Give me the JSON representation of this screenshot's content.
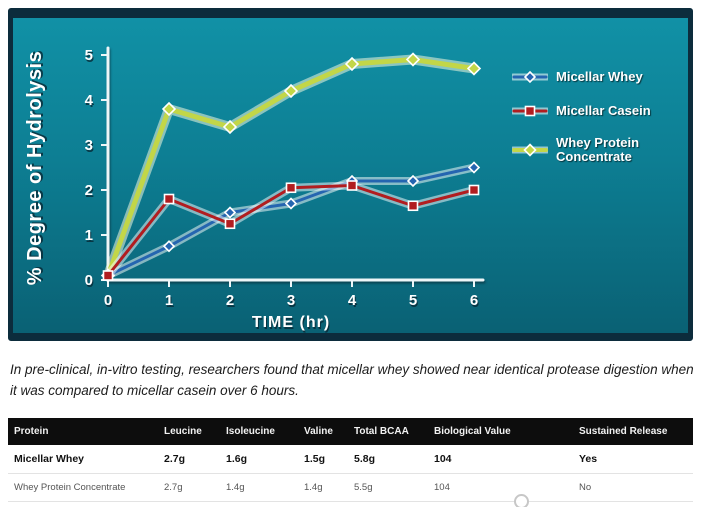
{
  "chart_data": {
    "type": "line",
    "x": [
      0,
      1,
      2,
      3,
      4,
      5,
      6
    ],
    "series": [
      {
        "name": "Micellar Whey",
        "color": "#2565b0",
        "marker": "diamond",
        "values": [
          0.1,
          0.75,
          1.5,
          1.7,
          2.2,
          2.2,
          2.5
        ]
      },
      {
        "name": "Micellar Casein",
        "color": "#b11d20",
        "marker": "square",
        "values": [
          0.1,
          1.8,
          1.25,
          2.05,
          2.1,
          1.65,
          2.0
        ]
      },
      {
        "name": "Whey Protein Concentrate",
        "color": "#c2d648",
        "marker": "diamond",
        "values": [
          0.1,
          3.8,
          3.4,
          4.2,
          4.8,
          4.9,
          4.7
        ]
      }
    ],
    "ylabel": "% Degree of Hydrolysis",
    "xlabel": "TIME (hr)",
    "ylim": [
      0,
      5
    ],
    "xlim": [
      0,
      6
    ],
    "yticks": [
      0,
      1,
      2,
      3,
      4,
      5
    ],
    "xticks": [
      0,
      1,
      2,
      3,
      4,
      5,
      6
    ],
    "grid": false,
    "legend_position": "right",
    "plot_background": "#0d7e93",
    "frame_color": "#0c2c3c"
  },
  "caption": {
    "text": "In pre-clinical, in-vitro testing, researchers found that micellar whey showed near identical protease digestion when it was compared to micellar casein over 6 hours."
  },
  "table": {
    "columns": [
      "Protein",
      "Leucine",
      "Isoleucine",
      "Valine",
      "Total BCAA",
      "Biological Value",
      "Sustained Release"
    ],
    "rows": [
      [
        "Micellar Whey",
        "2.7g",
        "1.6g",
        "1.5g",
        "5.8g",
        "104",
        "Yes"
      ],
      [
        "Whey Protein Concentrate",
        "2.7g",
        "1.4g",
        "1.4g",
        "5.5g",
        "104",
        "No"
      ]
    ]
  }
}
